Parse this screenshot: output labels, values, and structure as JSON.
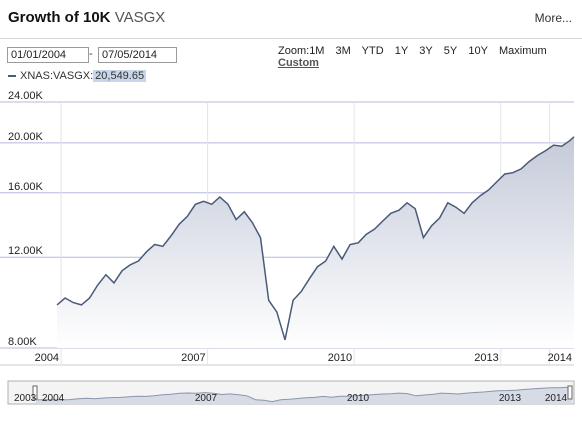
{
  "header": {
    "title": "Growth of 10K",
    "symbol": "VASGX",
    "more_label": "More..."
  },
  "range": {
    "start_date": "01/01/2004",
    "separator": "-",
    "end_date": "07/05/2014"
  },
  "zoom": {
    "label": "Zoom:",
    "options": [
      "1M",
      "3M",
      "YTD",
      "1Y",
      "3Y",
      "5Y",
      "10Y",
      "Maximum"
    ],
    "custom_label": "Custom"
  },
  "legend": {
    "series_label": "XNAS:VASGX:",
    "series_value": "20,549.65"
  },
  "colors": {
    "line": "#4a5a7a",
    "fill_top": "#c4cad9",
    "fill_bottom": "#ffffff",
    "grid_h": "#b8b8e0",
    "grid_v": "#e4e4e4"
  },
  "navigator": {
    "tick_labels": [
      "2003",
      "2004",
      "2007",
      "2010",
      "2013",
      "2014"
    ]
  },
  "chart_data": {
    "type": "area",
    "title": "",
    "xlabel": "",
    "ylabel": "",
    "y_scale": "log",
    "ylim": [
      8000,
      24000
    ],
    "xlim": [
      "2003-12",
      "2014-07"
    ],
    "y_ticks": [
      {
        "value": 8000,
        "label": "8.00K"
      },
      {
        "value": 12000,
        "label": "12.00K"
      },
      {
        "value": 16000,
        "label": "16.00K"
      },
      {
        "value": 20000,
        "label": "20.00K"
      },
      {
        "value": 24000,
        "label": "24.00K"
      }
    ],
    "x_ticks": [
      {
        "value": "2004-01",
        "label": "2004"
      },
      {
        "value": "2007-01",
        "label": "2007"
      },
      {
        "value": "2010-01",
        "label": "2010"
      },
      {
        "value": "2013-01",
        "label": "2013"
      },
      {
        "value": "2014-01",
        "label": "2014"
      }
    ],
    "grid": true,
    "series": [
      {
        "name": "XNAS:VASGX",
        "x": [
          "2003-12",
          "2004-02",
          "2004-04",
          "2004-06",
          "2004-08",
          "2004-10",
          "2004-12",
          "2005-02",
          "2005-04",
          "2005-06",
          "2005-08",
          "2005-10",
          "2005-12",
          "2006-02",
          "2006-04",
          "2006-06",
          "2006-08",
          "2006-10",
          "2006-12",
          "2007-02",
          "2007-04",
          "2007-06",
          "2007-08",
          "2007-10",
          "2007-12",
          "2008-02",
          "2008-04",
          "2008-06",
          "2008-08",
          "2008-10",
          "2008-12",
          "2009-02",
          "2009-04",
          "2009-06",
          "2009-08",
          "2009-10",
          "2009-12",
          "2010-02",
          "2010-04",
          "2010-06",
          "2010-08",
          "2010-10",
          "2010-12",
          "2011-02",
          "2011-04",
          "2011-06",
          "2011-08",
          "2011-10",
          "2011-12",
          "2012-02",
          "2012-04",
          "2012-06",
          "2012-08",
          "2012-10",
          "2012-12",
          "2013-02",
          "2013-04",
          "2013-06",
          "2013-08",
          "2013-10",
          "2013-12",
          "2014-02",
          "2014-04",
          "2014-06",
          "2014-07"
        ],
        "values": [
          9700,
          10000,
          9800,
          9700,
          10000,
          10600,
          11100,
          10700,
          11300,
          11600,
          11800,
          12300,
          12700,
          12600,
          13200,
          13900,
          14400,
          15200,
          15400,
          15200,
          15700,
          15200,
          14200,
          14700,
          14000,
          13100,
          9900,
          9400,
          8300,
          9900,
          10300,
          10900,
          11500,
          11800,
          12600,
          11900,
          12700,
          12800,
          13300,
          13600,
          14100,
          14600,
          14800,
          15300,
          14900,
          13100,
          13800,
          14300,
          15300,
          15000,
          14600,
          15300,
          15800,
          16200,
          16800,
          17400,
          17500,
          17800,
          18400,
          18900,
          19300,
          19800,
          19700,
          20200,
          20549.65
        ]
      }
    ]
  }
}
